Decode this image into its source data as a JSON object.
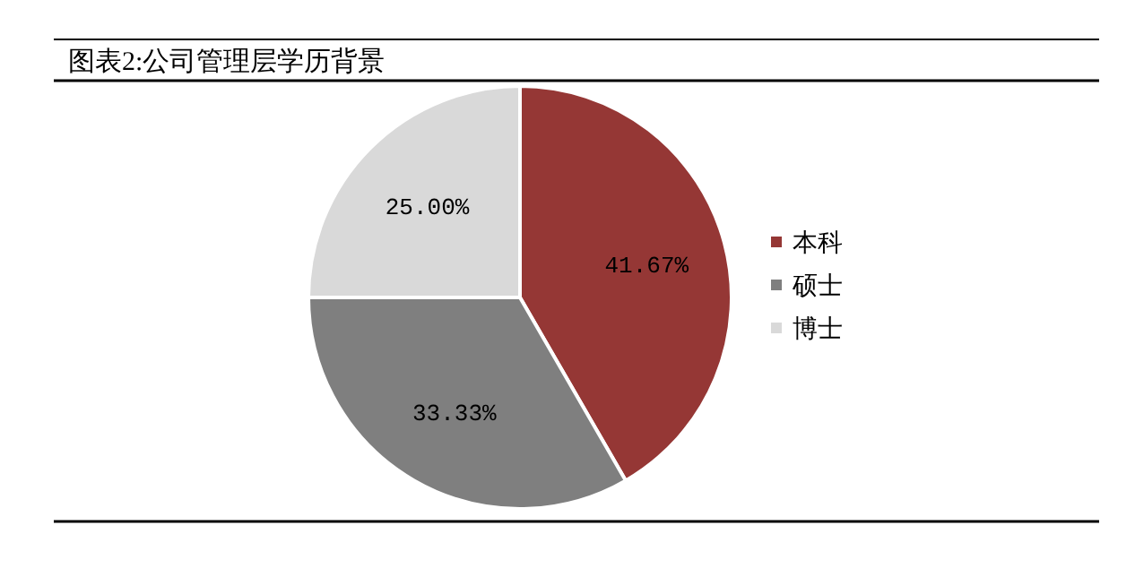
{
  "chart_data": {
    "type": "pie",
    "title": "图表2:公司管理层学历背景",
    "categories": [
      "本科",
      "硕士",
      "博士"
    ],
    "values": [
      41.67,
      33.33,
      25.0
    ],
    "colors": [
      "#953735",
      "#7f7f7f",
      "#d9d9d9"
    ],
    "value_labels": [
      "41.67%",
      "33.33%",
      "25.00%"
    ],
    "legend": "right"
  }
}
